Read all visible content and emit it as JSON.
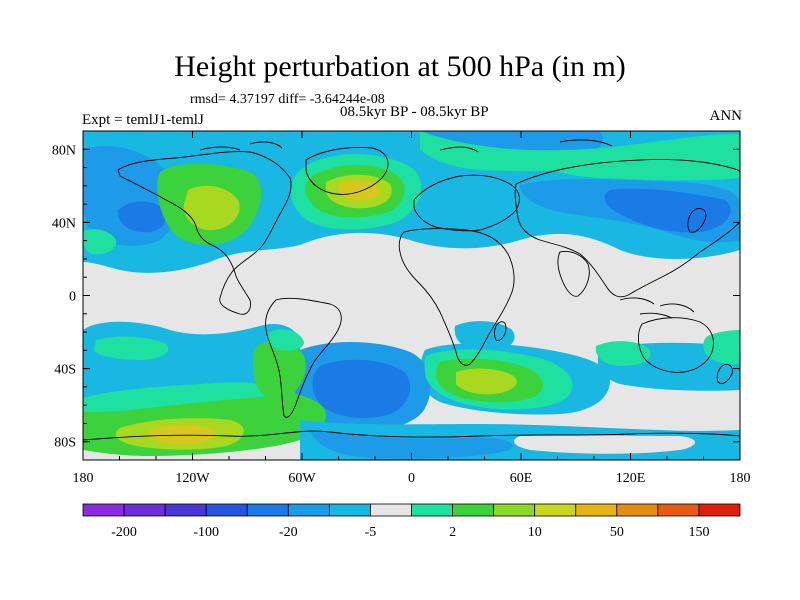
{
  "title": "Height perturbation at 500 hPa (in m)",
  "stats": "rmsd= 4.37197 diff= -3.64244e-08",
  "period": "08.5kyr BP - 08.5kyr BP",
  "experiment": "Expt = temlJ1-temlJ",
  "season": "ANN",
  "axes": {
    "lon_ticks": [
      "180",
      "120W",
      "60W",
      "0",
      "60E",
      "120E",
      "180"
    ],
    "lat_ticks": [
      "80N",
      "40N",
      "0",
      "40S",
      "80S"
    ],
    "lon_values": [
      -180,
      -120,
      -60,
      0,
      60,
      120,
      180
    ],
    "lat_values": [
      80,
      40,
      0,
      -40,
      -80
    ]
  },
  "colorbar": {
    "labels": [
      "-200",
      "-100",
      "-20",
      "-5",
      "2",
      "10",
      "50",
      "150"
    ],
    "colors": [
      "#8a2be2",
      "#6a2fd8",
      "#4a36d4",
      "#2455e0",
      "#1a7ae6",
      "#1e9be8",
      "#18b8e2",
      "#e6e6e6",
      "#1ee0a0",
      "#3cd23c",
      "#8cd828",
      "#c8d61e",
      "#e6b418",
      "#e68c14",
      "#e85a14",
      "#e01e0e"
    ],
    "label_boxes": [
      1,
      3,
      5,
      7,
      9,
      11,
      13,
      15
    ]
  },
  "palette": {
    "background": "#e6e6e6",
    "light_blue": "#18b8e2",
    "mid_blue": "#1e9be8",
    "blue": "#1a7ae6",
    "teal": "#1ee0a0",
    "green": "#3cd23c",
    "yellow_green": "#a8d820",
    "yellow": "#d8c81e",
    "orange_yellow": "#e6b418"
  }
}
